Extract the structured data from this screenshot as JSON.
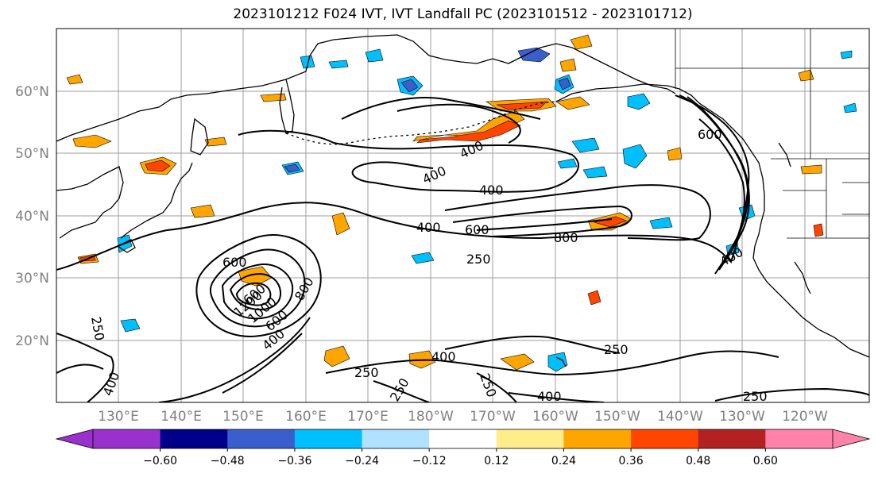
{
  "title": "2023101212 F024 IVT, IVT Landfall PC (2023101512 - 2023101712)",
  "lat_labels": [
    "60°N",
    "50°N",
    "40°N",
    "30°N",
    "20°N"
  ],
  "lon_labels": [
    "130°E",
    "140°E",
    "150°E",
    "160°E",
    "170°E",
    "180°W",
    "170°W",
    "160°W",
    "150°W",
    "140°W",
    "130°W",
    "120°W"
  ],
  "colorbar": {
    "colors": [
      "#9932CC",
      "#00008B",
      "#3A5FCD",
      "#00BFFF",
      "#B0E2FF",
      "#FFFFFF",
      "#FFEC8B",
      "#FFA500",
      "#FF4500",
      "#B22222",
      "#FF82AB"
    ],
    "tick_labels": [
      "−0.60",
      "−0.48",
      "−0.36",
      "−0.24",
      "−0.12",
      "0.12",
      "0.24",
      "0.36",
      "0.48",
      "0.60"
    ]
  },
  "contour_labels": [
    "400",
    "400",
    "400",
    "400",
    "600",
    "800",
    "250",
    "600",
    "600",
    "800",
    "400",
    "1000",
    "1200",
    "600",
    "400",
    "400",
    "250",
    "250",
    "250",
    "250",
    "400",
    "250",
    "600",
    "400",
    "250"
  ]
}
